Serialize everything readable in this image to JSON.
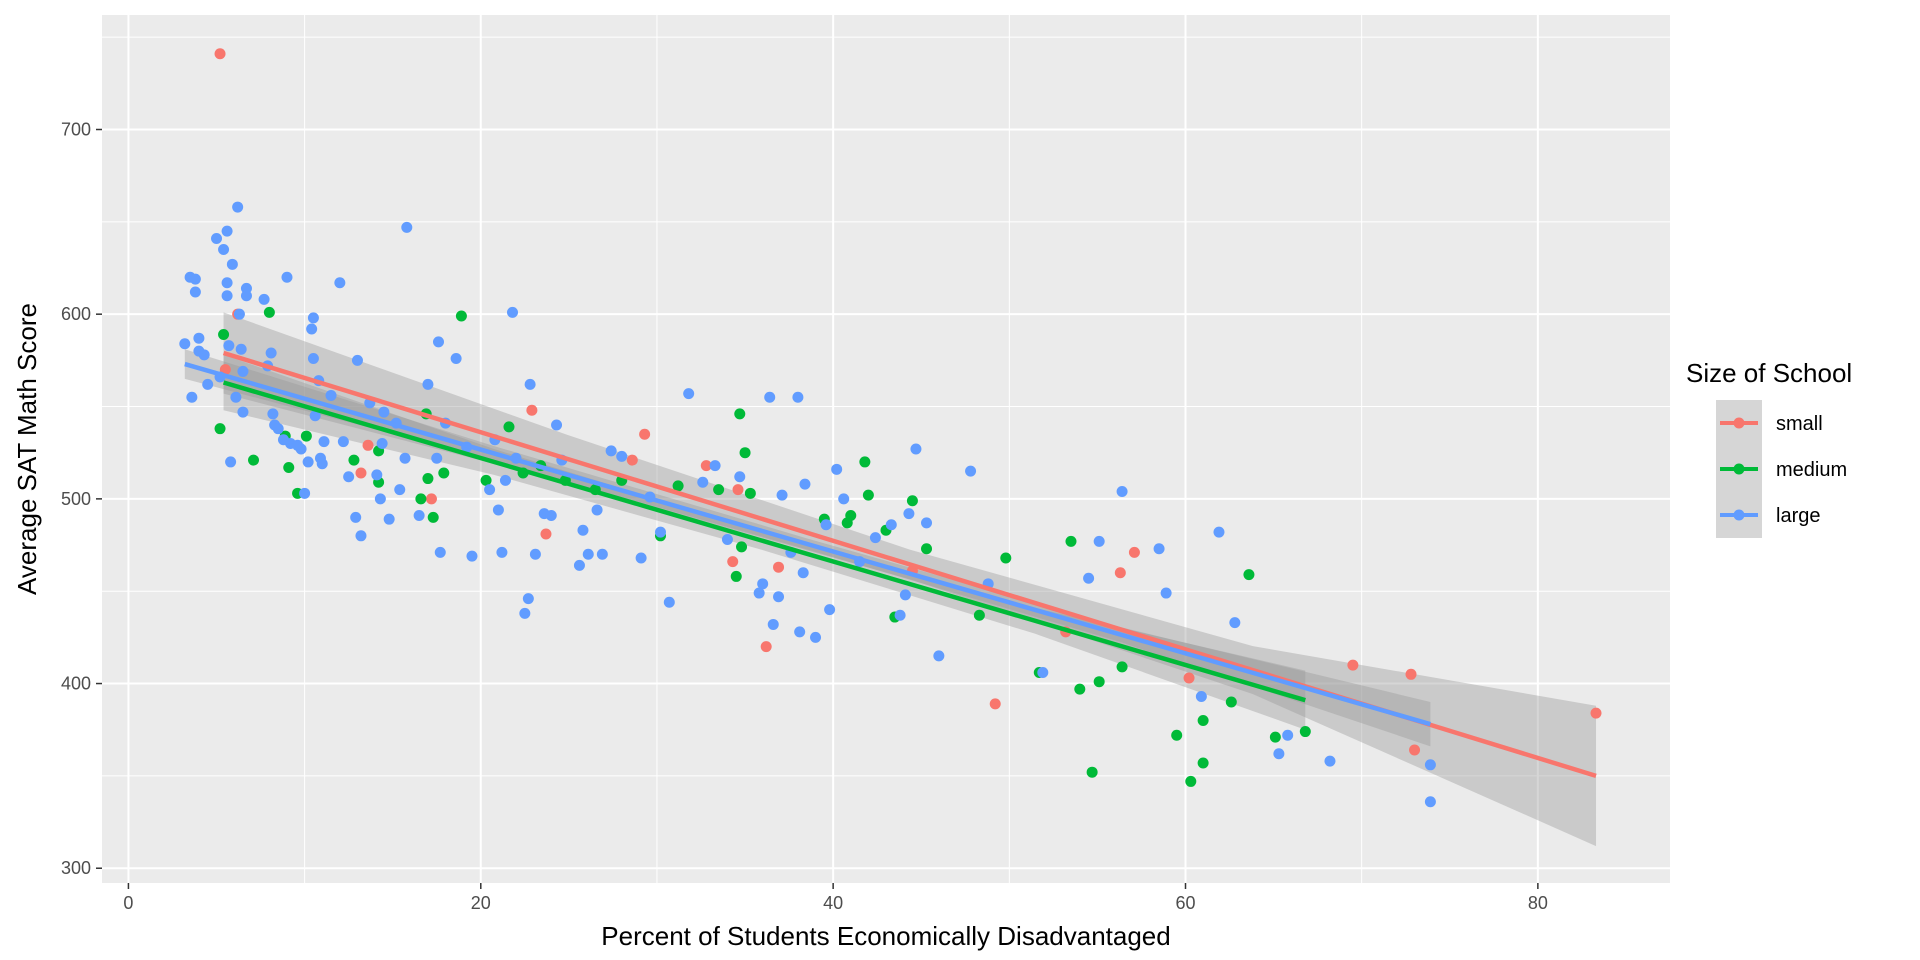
{
  "chart_data": {
    "type": "scatter",
    "title": "",
    "xlabel": "Percent of Students Economically Disadvantaged",
    "ylabel": "Average SAT Math Score",
    "xlim": [
      -1.5,
      87.5
    ],
    "ylim": [
      292,
      762
    ],
    "x_ticks": [
      0,
      20,
      40,
      60,
      80
    ],
    "y_ticks": [
      300,
      400,
      500,
      600,
      700
    ],
    "grid": true,
    "legend": {
      "title": "Size of School",
      "position": "right"
    },
    "colors": {
      "panel": "#ebebeb",
      "grid": "#ffffff",
      "band": "#999999"
    },
    "series": [
      {
        "name": "small",
        "color": "#F8766D",
        "fit": {
          "x0": 5.4,
          "y0": 579,
          "x1": 83.3,
          "y1": 350,
          "band_halfwidth": [
            22,
            13,
            8,
            13,
            38
          ]
        },
        "points": [
          [
            5.2,
            741
          ],
          [
            5.5,
            570
          ],
          [
            6.2,
            600
          ],
          [
            13.2,
            514
          ],
          [
            13.6,
            529
          ],
          [
            17.2,
            500
          ],
          [
            22.9,
            548
          ],
          [
            23.7,
            481
          ],
          [
            28.6,
            521
          ],
          [
            29.3,
            535
          ],
          [
            32.8,
            518
          ],
          [
            34.3,
            466
          ],
          [
            34.6,
            505
          ],
          [
            36.2,
            420
          ],
          [
            36.9,
            463
          ],
          [
            44.5,
            461
          ],
          [
            49.2,
            389
          ],
          [
            53.2,
            428
          ],
          [
            56.3,
            460
          ],
          [
            57.1,
            471
          ],
          [
            60.2,
            403
          ],
          [
            69.5,
            410
          ],
          [
            72.8,
            405
          ],
          [
            73.0,
            364
          ],
          [
            83.3,
            384
          ]
        ]
      },
      {
        "name": "medium",
        "color": "#00BA38",
        "fit": {
          "x0": 5.4,
          "y0": 563,
          "x1": 66.8,
          "y1": 391,
          "band_halfwidth": [
            15,
            7,
            5,
            7,
            16
          ]
        },
        "points": [
          [
            5.4,
            589
          ],
          [
            5.2,
            538
          ],
          [
            7.1,
            521
          ],
          [
            8.0,
            601
          ],
          [
            8.9,
            534
          ],
          [
            9.1,
            517
          ],
          [
            9.6,
            503
          ],
          [
            10.1,
            534
          ],
          [
            12.8,
            521
          ],
          [
            14.2,
            509
          ],
          [
            14.2,
            526
          ],
          [
            16.6,
            500
          ],
          [
            16.9,
            546
          ],
          [
            17.0,
            511
          ],
          [
            17.3,
            490
          ],
          [
            17.9,
            514
          ],
          [
            18.9,
            599
          ],
          [
            20.3,
            510
          ],
          [
            21.6,
            539
          ],
          [
            22.4,
            514
          ],
          [
            23.4,
            518
          ],
          [
            24.8,
            510
          ],
          [
            26.5,
            505
          ],
          [
            28.0,
            510
          ],
          [
            30.2,
            480
          ],
          [
            31.2,
            507
          ],
          [
            33.5,
            505
          ],
          [
            34.5,
            458
          ],
          [
            34.7,
            546
          ],
          [
            34.8,
            474
          ],
          [
            35.0,
            525
          ],
          [
            35.3,
            503
          ],
          [
            39.5,
            489
          ],
          [
            40.8,
            487
          ],
          [
            41.0,
            491
          ],
          [
            41.8,
            520
          ],
          [
            42.0,
            502
          ],
          [
            43.0,
            483
          ],
          [
            43.5,
            436
          ],
          [
            44.5,
            499
          ],
          [
            45.3,
            473
          ],
          [
            48.3,
            437
          ],
          [
            49.8,
            468
          ],
          [
            51.7,
            406
          ],
          [
            53.5,
            477
          ],
          [
            54.0,
            397
          ],
          [
            54.7,
            352
          ],
          [
            55.1,
            401
          ],
          [
            56.4,
            409
          ],
          [
            59.5,
            372
          ],
          [
            60.3,
            347
          ],
          [
            61.0,
            380
          ],
          [
            61.0,
            357
          ],
          [
            62.6,
            390
          ],
          [
            63.6,
            459
          ],
          [
            65.1,
            371
          ],
          [
            66.8,
            374
          ]
        ]
      },
      {
        "name": "large",
        "color": "#619CFF",
        "fit": {
          "x0": 3.2,
          "y0": 573,
          "x1": 73.9,
          "y1": 378,
          "band_halfwidth": [
            8,
            4,
            3,
            4,
            12
          ]
        },
        "points": [
          [
            3.2,
            584
          ],
          [
            3.5,
            620
          ],
          [
            3.6,
            555
          ],
          [
            3.8,
            612
          ],
          [
            3.8,
            619
          ],
          [
            4.0,
            580
          ],
          [
            4.0,
            587
          ],
          [
            4.3,
            578
          ],
          [
            4.5,
            562
          ],
          [
            5.0,
            641
          ],
          [
            5.2,
            566
          ],
          [
            5.4,
            635
          ],
          [
            5.6,
            645
          ],
          [
            5.6,
            617
          ],
          [
            5.6,
            610
          ],
          [
            5.7,
            583
          ],
          [
            5.8,
            520
          ],
          [
            5.9,
            627
          ],
          [
            6.1,
            555
          ],
          [
            6.2,
            658
          ],
          [
            6.3,
            600
          ],
          [
            6.4,
            581
          ],
          [
            6.5,
            569
          ],
          [
            6.5,
            547
          ],
          [
            6.7,
            614
          ],
          [
            6.7,
            610
          ],
          [
            7.7,
            608
          ],
          [
            7.9,
            572
          ],
          [
            8.1,
            579
          ],
          [
            8.2,
            546
          ],
          [
            8.3,
            540
          ],
          [
            8.5,
            538
          ],
          [
            8.8,
            532
          ],
          [
            9.0,
            620
          ],
          [
            9.2,
            530
          ],
          [
            9.6,
            529
          ],
          [
            9.8,
            527
          ],
          [
            10.0,
            503
          ],
          [
            10.2,
            520
          ],
          [
            10.4,
            592
          ],
          [
            10.5,
            598
          ],
          [
            10.5,
            576
          ],
          [
            10.6,
            545
          ],
          [
            10.8,
            564
          ],
          [
            10.9,
            522
          ],
          [
            11.0,
            519
          ],
          [
            11.1,
            531
          ],
          [
            11.5,
            556
          ],
          [
            12.0,
            617
          ],
          [
            12.2,
            531
          ],
          [
            12.5,
            512
          ],
          [
            12.9,
            490
          ],
          [
            13.0,
            575
          ],
          [
            13.2,
            480
          ],
          [
            13.7,
            552
          ],
          [
            14.1,
            513
          ],
          [
            14.3,
            500
          ],
          [
            14.4,
            530
          ],
          [
            14.5,
            547
          ],
          [
            14.8,
            489
          ],
          [
            15.2,
            541
          ],
          [
            15.4,
            505
          ],
          [
            15.7,
            522
          ],
          [
            15.8,
            647
          ],
          [
            16.5,
            491
          ],
          [
            17.0,
            562
          ],
          [
            17.5,
            522
          ],
          [
            17.6,
            585
          ],
          [
            17.7,
            471
          ],
          [
            18.0,
            541
          ],
          [
            18.6,
            576
          ],
          [
            19.2,
            528
          ],
          [
            19.5,
            469
          ],
          [
            20.5,
            505
          ],
          [
            20.8,
            532
          ],
          [
            21.0,
            494
          ],
          [
            21.2,
            471
          ],
          [
            21.4,
            510
          ],
          [
            21.8,
            601
          ],
          [
            22.0,
            522
          ],
          [
            22.5,
            438
          ],
          [
            22.7,
            446
          ],
          [
            22.8,
            562
          ],
          [
            23.1,
            470
          ],
          [
            23.6,
            492
          ],
          [
            24.0,
            491
          ],
          [
            24.3,
            540
          ],
          [
            24.6,
            521
          ],
          [
            25.6,
            464
          ],
          [
            25.8,
            483
          ],
          [
            26.1,
            470
          ],
          [
            26.6,
            494
          ],
          [
            26.9,
            470
          ],
          [
            27.4,
            526
          ],
          [
            28.0,
            523
          ],
          [
            29.1,
            468
          ],
          [
            29.6,
            501
          ],
          [
            30.2,
            482
          ],
          [
            30.7,
            444
          ],
          [
            31.8,
            557
          ],
          [
            32.6,
            509
          ],
          [
            33.3,
            518
          ],
          [
            34.0,
            478
          ],
          [
            34.7,
            512
          ],
          [
            35.8,
            449
          ],
          [
            36.0,
            454
          ],
          [
            36.4,
            555
          ],
          [
            36.6,
            432
          ],
          [
            36.9,
            447
          ],
          [
            37.1,
            502
          ],
          [
            37.6,
            471
          ],
          [
            38.0,
            555
          ],
          [
            38.1,
            428
          ],
          [
            38.3,
            460
          ],
          [
            38.4,
            508
          ],
          [
            39.0,
            425
          ],
          [
            39.6,
            486
          ],
          [
            39.8,
            440
          ],
          [
            40.2,
            516
          ],
          [
            40.6,
            500
          ],
          [
            41.5,
            466
          ],
          [
            42.4,
            479
          ],
          [
            43.3,
            486
          ],
          [
            43.8,
            437
          ],
          [
            44.1,
            448
          ],
          [
            44.3,
            492
          ],
          [
            44.7,
            527
          ],
          [
            45.3,
            487
          ],
          [
            46.0,
            415
          ],
          [
            47.8,
            515
          ],
          [
            48.8,
            454
          ],
          [
            51.9,
            406
          ],
          [
            54.5,
            457
          ],
          [
            55.1,
            477
          ],
          [
            58.5,
            473
          ],
          [
            58.9,
            449
          ],
          [
            60.9,
            393
          ],
          [
            61.9,
            482
          ],
          [
            62.8,
            433
          ],
          [
            65.3,
            362
          ],
          [
            65.8,
            372
          ],
          [
            68.2,
            358
          ],
          [
            73.9,
            356
          ],
          [
            73.9,
            336
          ],
          [
            56.4,
            504
          ]
        ]
      }
    ]
  }
}
